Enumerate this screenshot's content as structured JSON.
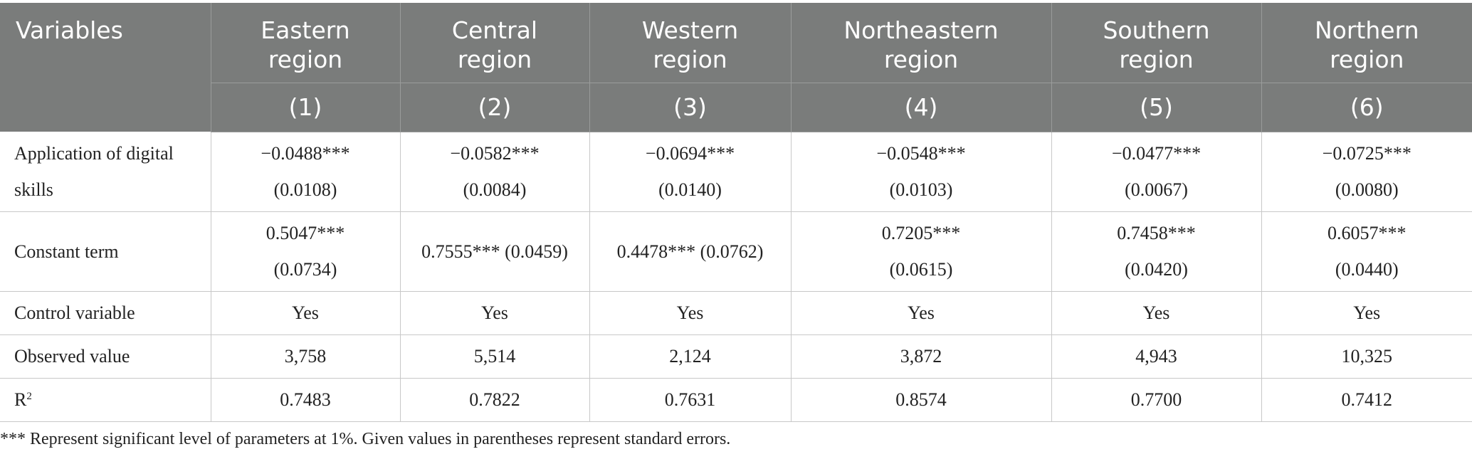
{
  "table": {
    "variables_label": "Variables",
    "columns": [
      {
        "region": [
          "Eastern",
          "region"
        ],
        "num": "(1)"
      },
      {
        "region": [
          "Central",
          "region"
        ],
        "num": "(2)"
      },
      {
        "region": [
          "Western",
          "region"
        ],
        "num": "(3)"
      },
      {
        "region": [
          "Northeastern",
          "region"
        ],
        "num": "(4)"
      },
      {
        "region": [
          "Southern",
          "region"
        ],
        "num": "(5)"
      },
      {
        "region": [
          "Northern",
          "region"
        ],
        "num": "(6)"
      }
    ],
    "rows": [
      {
        "label": [
          "Application of digital",
          "skills"
        ],
        "cells": [
          [
            "−0.0488***",
            "(0.0108)"
          ],
          [
            "−0.0582***",
            "(0.0084)"
          ],
          [
            "−0.0694***",
            "(0.0140)"
          ],
          [
            "−0.0548***",
            "(0.0103)"
          ],
          [
            "−0.0477***",
            "(0.0067)"
          ],
          [
            "−0.0725***",
            "(0.0080)"
          ]
        ]
      },
      {
        "label": [
          "Constant term"
        ],
        "cells": [
          [
            "0.5047***",
            "(0.0734)"
          ],
          [
            "0.7555*** (0.0459)"
          ],
          [
            "0.4478*** (0.0762)"
          ],
          [
            "0.7205***",
            "(0.0615)"
          ],
          [
            "0.7458***",
            "(0.0420)"
          ],
          [
            "0.6057***",
            "(0.0440)"
          ]
        ]
      },
      {
        "label": [
          "Control variable"
        ],
        "cells": [
          [
            "Yes"
          ],
          [
            "Yes"
          ],
          [
            "Yes"
          ],
          [
            "Yes"
          ],
          [
            "Yes"
          ],
          [
            "Yes"
          ]
        ]
      },
      {
        "label": [
          "Observed value"
        ],
        "cells": [
          [
            "3,758"
          ],
          [
            "5,514"
          ],
          [
            "2,124"
          ],
          [
            "3,872"
          ],
          [
            "4,943"
          ],
          [
            "10,325"
          ]
        ]
      },
      {
        "label": [
          "R",
          "2"
        ],
        "cells": [
          [
            "0.7483"
          ],
          [
            "0.7822"
          ],
          [
            "0.7631"
          ],
          [
            "0.8574"
          ],
          [
            "0.7700"
          ],
          [
            "0.7412"
          ]
        ]
      }
    ]
  },
  "footnote": "*** Represent significant level of parameters at 1%. Given values in parentheses represent standard errors."
}
